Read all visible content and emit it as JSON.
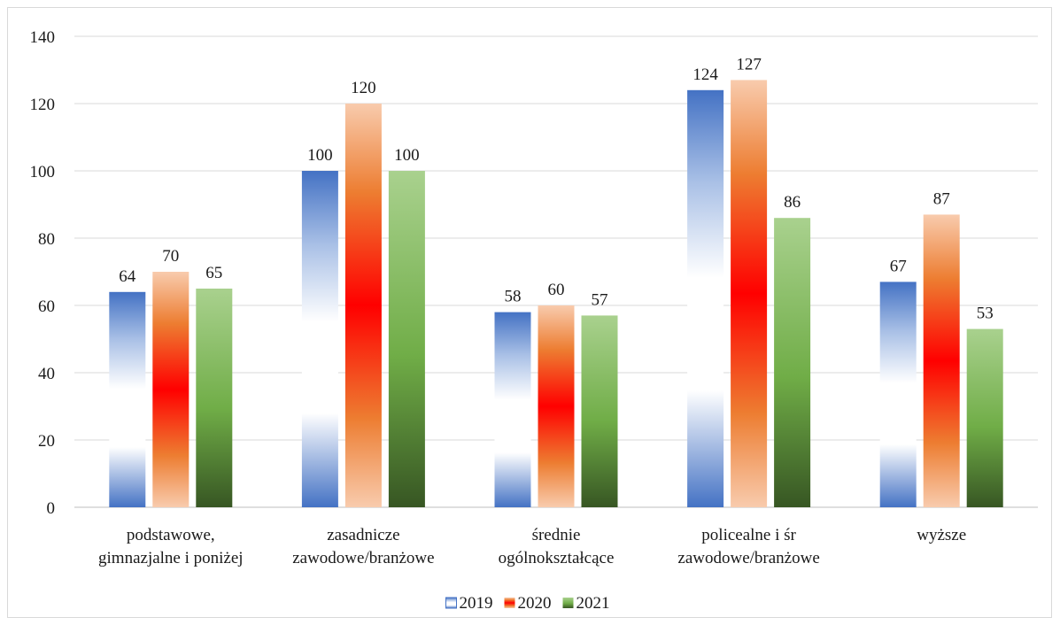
{
  "chart_data": {
    "type": "bar",
    "categories": [
      [
        "podstawowe,",
        "gimnazjalne i poniżej"
      ],
      [
        "zasadnicze",
        "zawodowe/branżowe"
      ],
      [
        "średnie",
        "ogólnokształcące"
      ],
      [
        "policealne i śr",
        "zawodowe/branżowe"
      ],
      [
        "wyższe"
      ]
    ],
    "series": [
      {
        "name": "2019",
        "values": [
          64,
          100,
          58,
          124,
          67
        ],
        "color": "#4472c4"
      },
      {
        "name": "2020",
        "values": [
          70,
          120,
          60,
          127,
          87
        ],
        "color": "#ff0000"
      },
      {
        "name": "2021",
        "values": [
          65,
          100,
          57,
          86,
          53
        ],
        "color": "#70ad47"
      }
    ],
    "ylim": [
      0,
      140
    ],
    "yticks": [
      0,
      20,
      40,
      60,
      80,
      100,
      120,
      140
    ],
    "grid": true,
    "legend_position": "bottom",
    "title": "",
    "xlabel": "",
    "ylabel": ""
  }
}
